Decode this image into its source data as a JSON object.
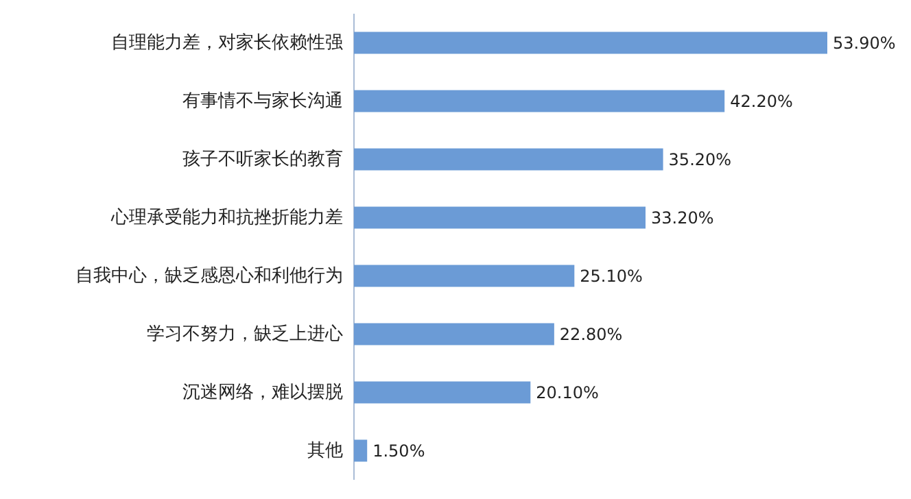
{
  "chart_data": {
    "type": "bar",
    "orientation": "horizontal",
    "color": "#6b9bd6",
    "categories": [
      "自理能力差，对家长依赖性强",
      "有事情不与家长沟通",
      "孩子不听家长的教育",
      "心理承受能力和抗挫折能力差",
      "自我中心，缺乏感恩心和利他行为",
      "学习不努力，缺乏上进心",
      "沉迷网络，难以摆脱",
      "其他"
    ],
    "values": [
      53.9,
      42.2,
      35.2,
      33.2,
      25.1,
      22.8,
      20.1,
      1.5
    ],
    "value_labels": [
      "53.90%",
      "42.20%",
      "35.20%",
      "33.20%",
      "25.10%",
      "22.80%",
      "20.10%",
      "1.50%"
    ]
  }
}
